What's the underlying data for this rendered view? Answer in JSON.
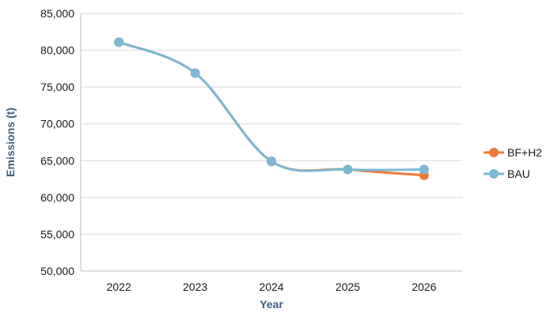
{
  "chart_data": {
    "type": "line",
    "x": [
      "2022",
      "2023",
      "2024",
      "2025",
      "2026"
    ],
    "xlabel": "Year",
    "ylabel": "Emissions (t)",
    "ylim": [
      50000,
      85000
    ],
    "yticks": [
      50000,
      55000,
      60000,
      65000,
      70000,
      75000,
      80000,
      85000
    ],
    "ytick_labels": [
      "50,000",
      "55,000",
      "60,000",
      "65,000",
      "70,000",
      "75,000",
      "80,000",
      "85,000"
    ],
    "grid": "horizontal",
    "smooth": true,
    "legend": "right",
    "series": [
      {
        "name": "BF+H2",
        "color": "#f07838",
        "values": [
          81100,
          76900,
          64900,
          63800,
          63000
        ]
      },
      {
        "name": "BAU",
        "color": "#7ab8d3",
        "values": [
          81100,
          76900,
          64900,
          63800,
          63800
        ]
      }
    ]
  }
}
